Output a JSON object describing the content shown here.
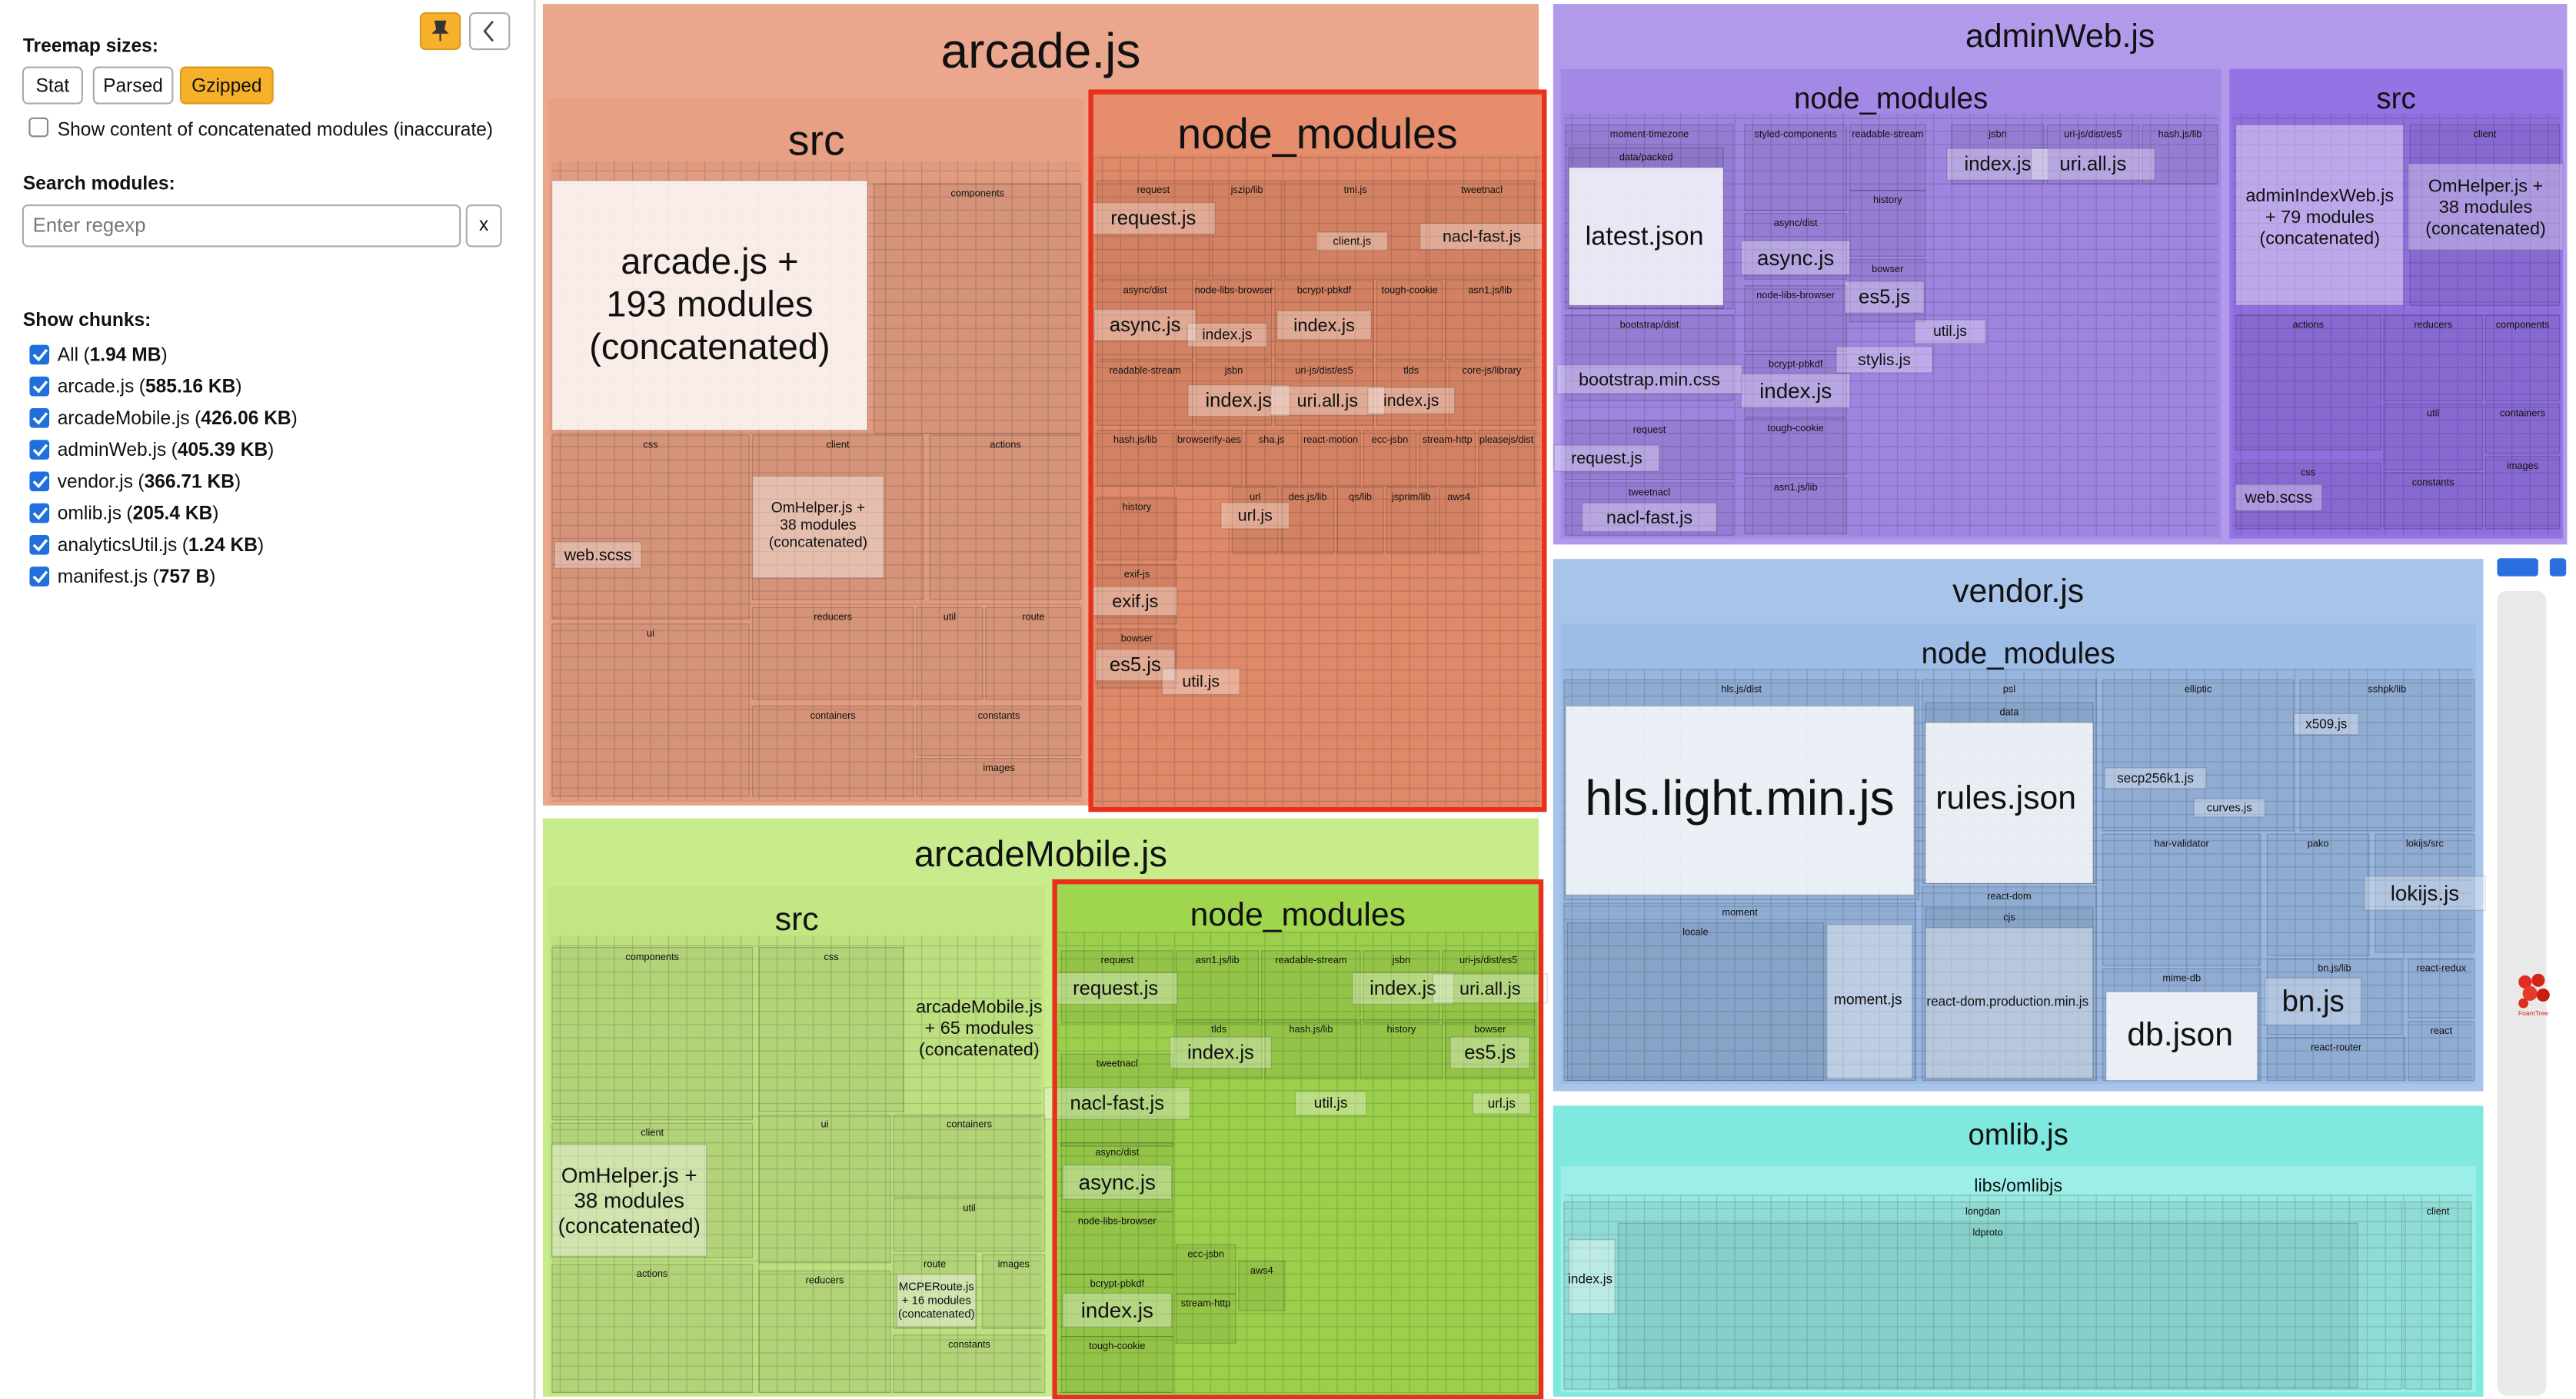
{
  "sidebar": {
    "treemap_sizes_label": "Treemap sizes:",
    "size_buttons": [
      "Stat",
      "Parsed",
      "Gzipped"
    ],
    "concat_label": "Show content of concatenated modules (inaccurate)",
    "search_label": "Search modules:",
    "search_placeholder": "Enter regexp",
    "clear_button": "x",
    "chunks_label": "Show chunks:",
    "brackets": [
      "(",
      ")"
    ],
    "chunks": [
      {
        "name": "All",
        "size": "1.94 MB"
      },
      {
        "name": "arcade.js",
        "size": "585.16 KB"
      },
      {
        "name": "arcadeMobile.js",
        "size": "426.06 KB"
      },
      {
        "name": "adminWeb.js",
        "size": "405.39 KB"
      },
      {
        "name": "vendor.js",
        "size": "366.71 KB"
      },
      {
        "name": "omlib.js",
        "size": "205.4 KB"
      },
      {
        "name": "analyticsUtil.js",
        "size": "1.24 KB"
      },
      {
        "name": "manifest.js",
        "size": "757 B"
      }
    ]
  },
  "treemap": {
    "logo": "FoamTree",
    "chunks": [
      {
        "label": "arcade.js",
        "folders": [
          {
            "label": "src",
            "modules": [
              {
                "lines": [
                  "arcade.js +",
                  "193 modules",
                  "(concatenated)"
                ]
              },
              "web.scss",
              {
                "lines": [
                  "OmHelper.js +",
                  "38 modules",
                  "(concatenated)"
                ]
              }
            ],
            "dirs": [
              "components",
              "css",
              "client",
              "actions",
              "ui",
              "reducers",
              "util",
              "route",
              "containers",
              "constants",
              "images"
            ]
          },
          {
            "label": "node_modules",
            "modules": [
              "request.js",
              "client.js",
              "nacl-fast.js",
              "async.js",
              "index.js",
              "index.js",
              "index.js",
              "uri.all.js",
              "index.js",
              "url.js",
              "exif.js",
              "es5.js",
              "util.js"
            ],
            "dirs": [
              "request",
              "jszip/lib",
              "tmi.js",
              "tweetnacl",
              "async/dist",
              "node-libs-browser",
              "bcrypt-pbkdf",
              "tough-cookie",
              "asn1.js/lib",
              "readable-stream",
              "jsbn",
              "uri-js/dist/es5",
              "tlds",
              "core-js/library",
              "hash.js/lib",
              "browserify-aes",
              "sha.js",
              "react-motion",
              "ecc-jsbn",
              "stream-http",
              "pleasejs/dist",
              "url",
              "des.js/lib",
              "qs/lib",
              "jsprim/lib",
              "aws4",
              "history",
              "exif-js",
              "bowser"
            ]
          }
        ]
      },
      {
        "label": "arcadeMobile.js",
        "folders": [
          {
            "label": "src",
            "modules": [
              {
                "lines": [
                  "arcadeMobile.js",
                  "+ 65 modules",
                  "(concatenated)"
                ]
              },
              {
                "lines": [
                  "OmHelper.js +",
                  "38 modules",
                  "(concatenated)"
                ]
              },
              {
                "lines": [
                  "MCPERoute.js",
                  "+ 16 modules",
                  "(concatenated)"
                ]
              }
            ],
            "dirs": [
              "components",
              "css",
              "client",
              "ui",
              "containers",
              "util",
              "actions",
              "reducers",
              "route",
              "images",
              "constants"
            ]
          },
          {
            "label": "node_modules",
            "modules": [
              "request.js",
              "index.js",
              "uri.all.js",
              "index.js",
              "es5.js",
              "nacl-fast.js",
              "util.js",
              "url.js",
              "async.js",
              "index.js"
            ],
            "dirs": [
              "request",
              "asn1.js/lib",
              "readable-stream",
              "jsbn",
              "uri-js/dist/es5",
              "tlds",
              "hash.js/lib",
              "history",
              "bowser",
              "tweetnacl",
              "async/dist",
              "node-libs-browser",
              "bcrypt-pbkdf",
              "tough-cookie",
              "ecc-jsbn",
              "stream-http",
              "aws4"
            ]
          }
        ]
      },
      {
        "label": "adminWeb.js",
        "folders": [
          {
            "label": "node_modules",
            "modules": [
              "latest.json",
              "bootstrap.min.css",
              "request.js",
              "nacl-fast.js",
              "async.js",
              "es5.js",
              "stylis.js",
              "index.js",
              "uri.all.js",
              "index.js",
              "util.js"
            ],
            "dirs": [
              "moment-timezone",
              "data/packed",
              "styled-components",
              "readable-stream",
              "jsbn",
              "uri-js/dist/es5",
              "hash.js/lib",
              "history",
              "async/dist",
              "bowser",
              "node-libs-browser",
              "bootstrap/dist",
              "bcrypt-pbkdf",
              "request",
              "tough-cookie",
              "tweetnacl",
              "asn1.js/lib"
            ]
          },
          {
            "label": "src",
            "modules": [
              {
                "lines": [
                  "adminIndexWeb.js",
                  "+ 79 modules",
                  "(concatenated)"
                ]
              },
              {
                "lines": [
                  "OmHelper.js +",
                  "38 modules",
                  "(concatenated)"
                ]
              },
              "web.scss"
            ],
            "dirs": [
              "client",
              "actions",
              "reducers",
              "components",
              "util",
              "containers",
              "css",
              "constants",
              "images"
            ]
          }
        ]
      },
      {
        "label": "vendor.js",
        "folders": [
          {
            "label": "node_modules",
            "modules": [
              "hls.light.min.js",
              "rules.json",
              "db.json",
              "bn.js",
              "lokijs.js",
              "moment.js",
              "react-dom.production.min.js",
              "secp256k1.js",
              "x509.js",
              "curves.js"
            ],
            "dirs": [
              "hls.js/dist",
              "psl",
              "data",
              "elliptic",
              "sshpk/lib",
              "moment",
              "locale",
              "react-dom",
              "cjs",
              "har-validator",
              "pako",
              "lokijs/src",
              "mime-db",
              "bn.js/lib",
              "react-redux",
              "react-router",
              "react"
            ]
          }
        ]
      },
      {
        "label": "omlib.js",
        "folders": [
          {
            "label": "libs/omlibjs",
            "modules": [
              "index.js"
            ],
            "dirs": [
              "longdan",
              "ldproto",
              "client"
            ]
          }
        ]
      }
    ]
  }
}
